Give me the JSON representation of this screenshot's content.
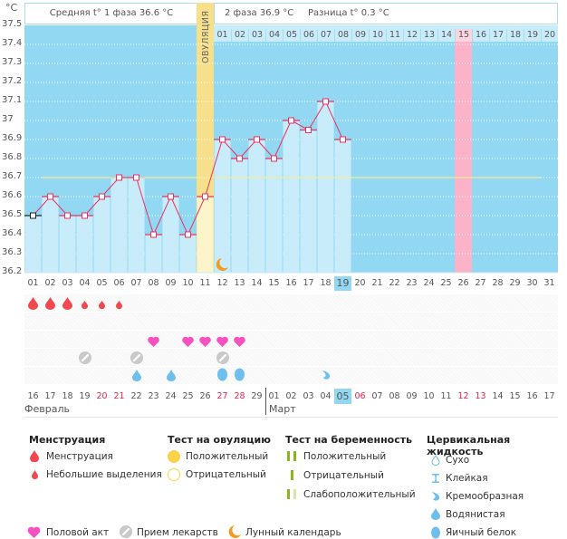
{
  "header": {
    "unit": "°C",
    "phase1": "Средняя t° 1 фаза 36.6 °C",
    "phase2": "2 фаза 36.9 °C",
    "difference": "Разница t° 0.3 °C",
    "ovulation_label": "ОВУЛЯЦИЯ"
  },
  "colors": {
    "chart_bg": "#93d8f2",
    "bar_fill": "#c9ecfb",
    "line": "#e8325f",
    "ovulation": "#f6e08c",
    "ovulation_light": "#fdf5c9",
    "expected_period": "#fbb3c8",
    "coverline": "#f3ec9a",
    "today": "#93d8f2"
  },
  "chart_data": {
    "type": "line",
    "title": "",
    "xlabel": "",
    "ylabel": "°C",
    "ylim": [
      36.2,
      37.5
    ],
    "y_ticks": [
      "37.5",
      "37.4",
      "37.3",
      "37.2",
      "37.1",
      "37",
      "36.9",
      "36.8",
      "36.7",
      "36.6",
      "36.5",
      "36.4",
      "36.3",
      "36.2"
    ],
    "x": [
      "01",
      "02",
      "03",
      "04",
      "05",
      "06",
      "07",
      "08",
      "09",
      "10",
      "11",
      "12",
      "13",
      "14",
      "15",
      "16",
      "17",
      "18",
      "19",
      "20",
      "21",
      "22",
      "23",
      "24",
      "25",
      "26",
      "27",
      "28",
      "29",
      "30",
      "31"
    ],
    "series": [
      {
        "name": "Базальная температура",
        "values": [
          36.5,
          36.6,
          36.5,
          36.5,
          36.6,
          36.7,
          36.7,
          36.4,
          36.6,
          36.4,
          36.6,
          36.9,
          36.8,
          36.9,
          36.8,
          37.0,
          36.95,
          37.1,
          36.9
        ]
      }
    ],
    "coverline": 36.7,
    "ovulation_day": 11,
    "expected_period_day": 26,
    "today_day": 19,
    "phase2_day_labels": [
      "01",
      "02",
      "03",
      "04",
      "05",
      "06",
      "07",
      "08",
      "09",
      "10",
      "11",
      "12",
      "13",
      "14",
      "15",
      "16",
      "17",
      "18",
      "19",
      "20"
    ],
    "moon_day": 12
  },
  "calendar": {
    "dates": [
      {
        "d": "16",
        "red": false
      },
      {
        "d": "17",
        "red": false
      },
      {
        "d": "18",
        "red": false
      },
      {
        "d": "19",
        "red": false
      },
      {
        "d": "20",
        "red": true
      },
      {
        "d": "21",
        "red": true
      },
      {
        "d": "22",
        "red": false
      },
      {
        "d": "23",
        "red": false
      },
      {
        "d": "24",
        "red": false
      },
      {
        "d": "25",
        "red": false
      },
      {
        "d": "26",
        "red": false
      },
      {
        "d": "27",
        "red": true
      },
      {
        "d": "28",
        "red": true
      },
      {
        "d": "29",
        "red": false
      },
      {
        "d": "01",
        "red": false
      },
      {
        "d": "02",
        "red": false
      },
      {
        "d": "03",
        "red": false
      },
      {
        "d": "04",
        "red": false
      },
      {
        "d": "05",
        "red": false,
        "today": true
      },
      {
        "d": "06",
        "red": true
      },
      {
        "d": "07",
        "red": false
      },
      {
        "d": "08",
        "red": false
      },
      {
        "d": "09",
        "red": false
      },
      {
        "d": "10",
        "red": false
      },
      {
        "d": "11",
        "red": false
      },
      {
        "d": "12",
        "red": true
      },
      {
        "d": "13",
        "red": true
      },
      {
        "d": "14",
        "red": false
      },
      {
        "d": "15",
        "red": false
      },
      {
        "d": "16",
        "red": false
      },
      {
        "d": "17",
        "red": false
      }
    ],
    "month1": "Февраль",
    "month2": "Март",
    "month2_start_index": 14,
    "menstruation": [
      {
        "day": 1,
        "type": "heavy"
      },
      {
        "day": 2,
        "type": "heavy"
      },
      {
        "day": 3,
        "type": "heavy"
      },
      {
        "day": 4,
        "type": "light"
      },
      {
        "day": 5,
        "type": "light"
      },
      {
        "day": 6,
        "type": "light"
      }
    ],
    "intercourse_days": [
      8,
      10,
      11,
      12,
      13
    ],
    "medication_days": [
      4,
      7,
      12
    ],
    "cervical": [
      {
        "day": 7,
        "type": "watery"
      },
      {
        "day": 9,
        "type": "watery"
      },
      {
        "day": 12,
        "type": "eggwhite"
      },
      {
        "day": 13,
        "type": "eggwhite"
      },
      {
        "day": 18,
        "type": "creamy"
      }
    ]
  },
  "legend": {
    "menstruation": {
      "title": "Менструация",
      "items": [
        "Менструация",
        "Небольшие выделения"
      ]
    },
    "ovulation_test": {
      "title": "Тест на овуляцию",
      "items": [
        "Положительный",
        "Отрицательный"
      ]
    },
    "pregnancy_test": {
      "title": "Тест на беременность",
      "items": [
        "Положительный",
        "Отрицательный",
        "Слабоположительный"
      ]
    },
    "cervical": {
      "title": "Цервикальная жидкость",
      "items": [
        "Сухо",
        "Клейкая",
        "Кремообразная",
        "Водянистая",
        "Яичный белок"
      ]
    },
    "bottom": [
      "Половой акт",
      "Прием лекарств",
      "Лунный календарь"
    ]
  }
}
